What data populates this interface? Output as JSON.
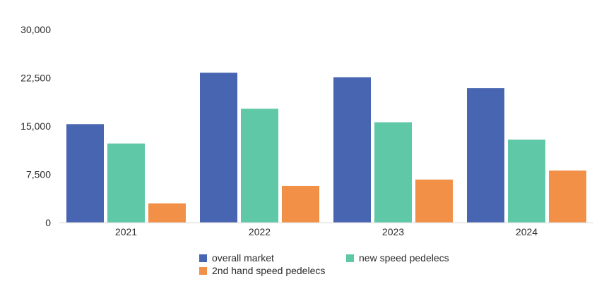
{
  "chart_data": {
    "type": "bar",
    "categories": [
      "2021",
      "2022",
      "2023",
      "2024"
    ],
    "series": [
      {
        "name": "overall market",
        "color": "#4765b0",
        "values": [
          15300,
          23300,
          22600,
          20900
        ]
      },
      {
        "name": "new speed pedelecs",
        "color": "#5fc8a6",
        "values": [
          12300,
          17700,
          15600,
          12900
        ]
      },
      {
        "name": "2nd hand speed pedelecs",
        "color": "#f39047",
        "values": [
          3000,
          5700,
          6700,
          8100
        ]
      }
    ],
    "y_ticks": [
      {
        "value": 0,
        "label": "0"
      },
      {
        "value": 7500,
        "label": "7,500"
      },
      {
        "value": 15000,
        "label": "15,000"
      },
      {
        "value": 22500,
        "label": "22,500"
      },
      {
        "value": 30000,
        "label": "30,000"
      }
    ],
    "ylim": [
      0,
      30000
    ],
    "grid": false,
    "legend_position": "bottom-center",
    "title": "",
    "xlabel": "",
    "ylabel": ""
  }
}
